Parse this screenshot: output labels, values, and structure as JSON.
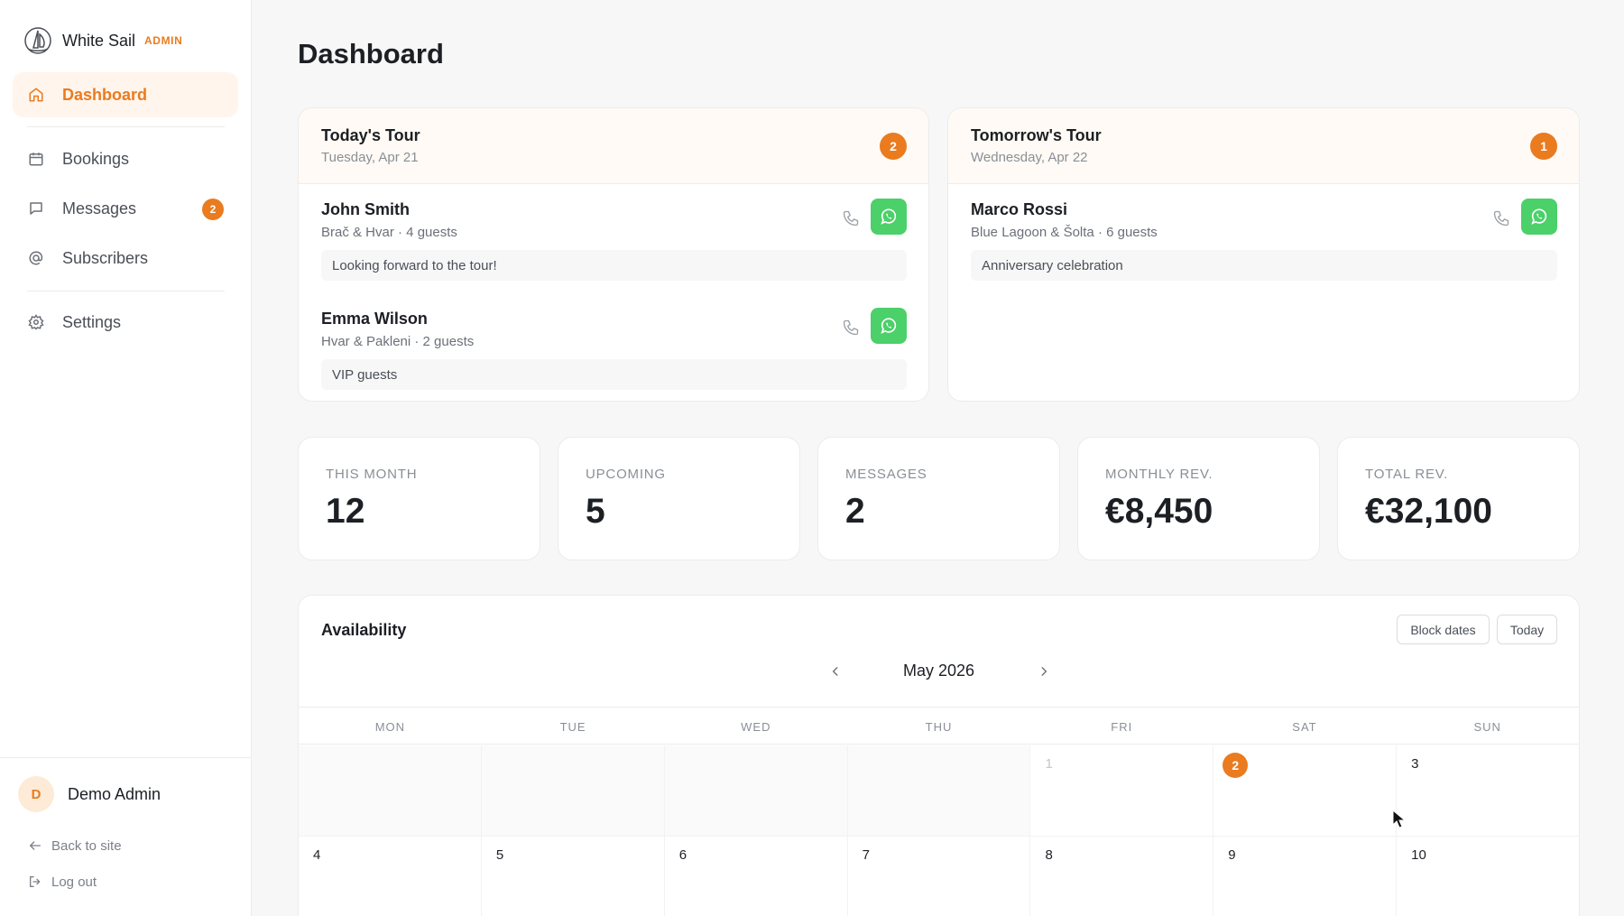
{
  "brand": {
    "name": "White Sail",
    "tag": "ADMIN",
    "logo_icon": "sailboat-icon"
  },
  "nav": {
    "items": [
      {
        "label": "Dashboard",
        "icon": "home-icon",
        "active": true
      },
      {
        "label": "Bookings",
        "icon": "calendar-icon"
      },
      {
        "label": "Messages",
        "icon": "message-icon",
        "badge": "2"
      },
      {
        "label": "Subscribers",
        "icon": "at-sign-icon"
      },
      {
        "label": "Settings",
        "icon": "gear-icon"
      }
    ]
  },
  "user": {
    "initial": "D",
    "name": "Demo Admin"
  },
  "footer": {
    "back": "Back to site",
    "logout": "Log out"
  },
  "page": {
    "title": "Dashboard"
  },
  "tours": [
    {
      "title": "Today's Tour",
      "date": "Tuesday, Apr 21",
      "count": "2",
      "guests": [
        {
          "name": "John Smith",
          "meta": "Brač & Hvar · 4 guests",
          "note": "Looking forward to the tour!"
        },
        {
          "name": "Emma Wilson",
          "meta": "Hvar & Pakleni · 2 guests",
          "note": "VIP guests"
        }
      ]
    },
    {
      "title": "Tomorrow's Tour",
      "date": "Wednesday, Apr 22",
      "count": "1",
      "guests": [
        {
          "name": "Marco Rossi",
          "meta": "Blue Lagoon & Šolta · 6 guests",
          "note": "Anniversary celebration"
        }
      ]
    }
  ],
  "stats": [
    {
      "label": "THIS MONTH",
      "value": "12"
    },
    {
      "label": "UPCOMING",
      "value": "5"
    },
    {
      "label": "MESSAGES",
      "value": "2"
    },
    {
      "label": "MONTHLY REV.",
      "value": "€8,450"
    },
    {
      "label": "TOTAL REV.",
      "value": "€32,100"
    }
  ],
  "availability": {
    "title": "Availability",
    "block_dates": "Block dates",
    "today_btn": "Today",
    "month": "May 2026",
    "weekdays": [
      "MON",
      "TUE",
      "WED",
      "THU",
      "FRI",
      "SAT",
      "SUN"
    ],
    "week1": [
      "",
      "",
      "",
      "",
      "1",
      "2",
      "3"
    ],
    "week2": [
      "4",
      "5",
      "6",
      "7",
      "8",
      "9",
      "10"
    ],
    "today": "2",
    "accent": "#ea7b1f"
  }
}
